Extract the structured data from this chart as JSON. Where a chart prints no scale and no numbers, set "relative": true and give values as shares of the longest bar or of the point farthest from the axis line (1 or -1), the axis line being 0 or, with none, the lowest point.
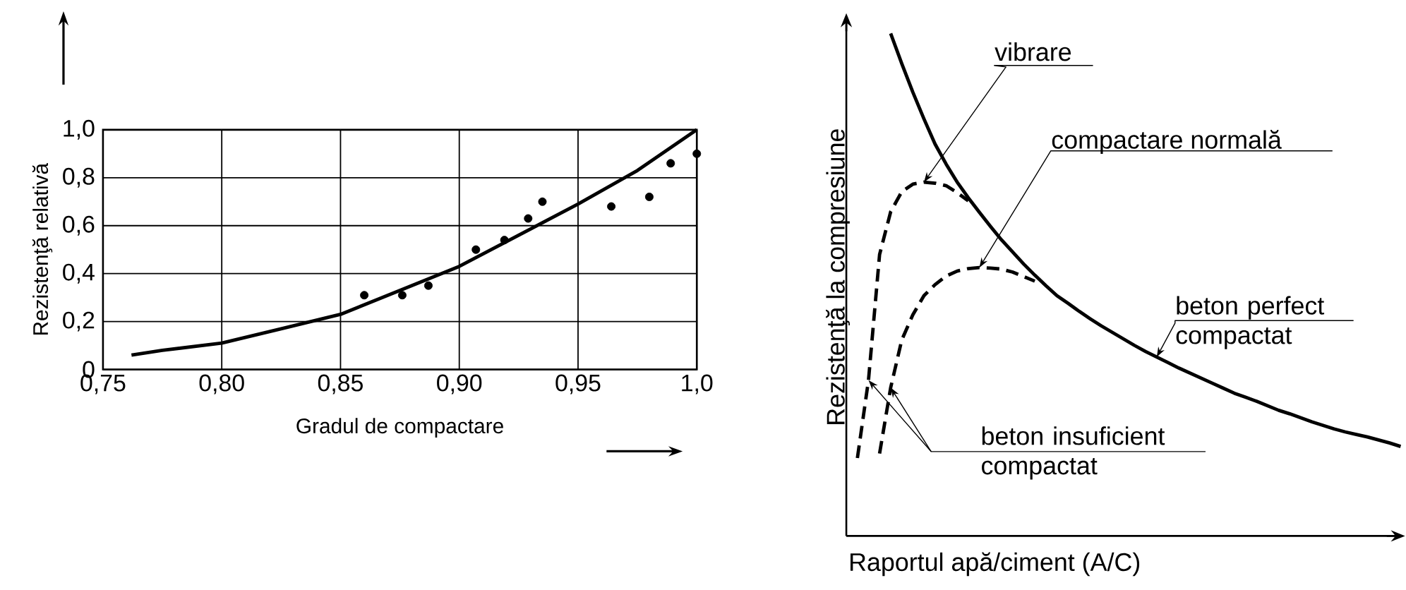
{
  "chart_data": [
    {
      "type": "scatter",
      "xlabel": "Gradul de compactare",
      "ylabel": "Rezistenţă relativă",
      "xlim": [
        0.75,
        1.0
      ],
      "ylim": [
        0,
        1.0
      ],
      "xticks": [
        {
          "value": 0.75,
          "label": "0,75"
        },
        {
          "value": 0.8,
          "label": "0,80"
        },
        {
          "value": 0.85,
          "label": "0,85"
        },
        {
          "value": 0.9,
          "label": "0,90"
        },
        {
          "value": 0.95,
          "label": "0,95"
        },
        {
          "value": 1.0,
          "label": "1,0"
        }
      ],
      "yticks": [
        0,
        {
          "value": 0.2,
          "label": "0,2"
        },
        {
          "value": 0.4,
          "label": "0,4"
        },
        {
          "value": 0.6,
          "label": "0,6"
        },
        {
          "value": 0.8,
          "label": "0,8"
        },
        {
          "value": 1.0,
          "label": "1,0"
        }
      ],
      "grid": true,
      "series": [
        {
          "type": "scatter",
          "color": "#000000",
          "marker": "circle",
          "x": [
            0.86,
            0.876,
            0.887,
            0.907,
            0.919,
            0.929,
            0.935,
            0.964,
            0.98,
            0.989,
            1.0
          ],
          "values": [
            0.31,
            0.31,
            0.35,
            0.5,
            0.54,
            0.63,
            0.7,
            0.68,
            0.72,
            0.86,
            0.9
          ]
        },
        {
          "type": "line",
          "color": "#000000",
          "x": [
            0.762,
            0.775,
            0.8,
            0.825,
            0.85,
            0.875,
            0.9,
            0.925,
            0.95,
            0.975,
            1.0
          ],
          "values": [
            0.06,
            0.08,
            0.11,
            0.17,
            0.23,
            0.33,
            0.43,
            0.56,
            0.69,
            0.83,
            1.0
          ]
        }
      ]
    },
    {
      "type": "line",
      "relative": true,
      "xlabel": "Raportul apă/ciment (A/C)",
      "ylabel": "Rezistenţă la compresiune",
      "categories": [
        null,
        null,
        null,
        null,
        null,
        null,
        null,
        null,
        null,
        null,
        null,
        null,
        null,
        null,
        null,
        null,
        null,
        null,
        null,
        null,
        null,
        null,
        null,
        null,
        null,
        null,
        null,
        null,
        null,
        null,
        null,
        null,
        null,
        null,
        null,
        null,
        null,
        null,
        null,
        null,
        null,
        null,
        null,
        null,
        null,
        null,
        null,
        null,
        null,
        null,
        null
      ],
      "series": [
        {
          "color": "#000000",
          "line_style": "solid",
          "values": [
            null,
            null,
            null,
            null,
            1.0,
            0.94,
            0.883,
            0.83,
            0.78,
            0.74,
            0.704,
            0.673,
            0.644,
            0.616,
            0.589,
            0.565,
            0.541,
            0.519,
            0.498,
            0.478,
            0.463,
            0.447,
            0.432,
            0.418,
            0.405,
            0.392,
            0.379,
            0.367,
            0.356,
            0.345,
            0.334,
            0.324,
            0.314,
            0.304,
            0.294,
            0.284,
            0.276,
            0.268,
            0.259,
            0.25,
            0.243,
            0.235,
            0.227,
            0.22,
            0.213,
            0.207,
            0.202,
            0.197,
            0.191,
            0.185,
            0.178
          ]
        },
        {
          "color": "#000000",
          "line_style": "dashed",
          "values": [
            null,
            0.155,
            0.31,
            0.56,
            0.645,
            0.685,
            0.7,
            0.704,
            0.702,
            0.697,
            0.683,
            0.667,
            null,
            null,
            null,
            null,
            null,
            null,
            null,
            null,
            null,
            null,
            null,
            null,
            null,
            null,
            null,
            null,
            null,
            null,
            null,
            null,
            null,
            null,
            null,
            null,
            null,
            null,
            null,
            null,
            null,
            null,
            null,
            null,
            null,
            null,
            null,
            null,
            null,
            null,
            null
          ]
        },
        {
          "color": "#000000",
          "line_style": "dashed",
          "values": [
            null,
            null,
            null,
            0.164,
            0.295,
            0.39,
            0.44,
            0.478,
            0.5,
            0.517,
            0.527,
            0.532,
            0.534,
            0.533,
            0.531,
            0.525,
            0.516,
            0.507,
            null,
            null,
            null,
            null,
            null,
            null,
            null,
            null,
            null,
            null,
            null,
            null,
            null,
            null,
            null,
            null,
            null,
            null,
            null,
            null,
            null,
            null,
            null,
            null,
            null,
            null,
            null,
            null,
            null,
            null,
            null,
            null,
            null
          ]
        }
      ],
      "annotations": [
        "vibrare",
        "compactare normală",
        "beton perfect compactat",
        "beton insuficient compactat"
      ]
    }
  ]
}
